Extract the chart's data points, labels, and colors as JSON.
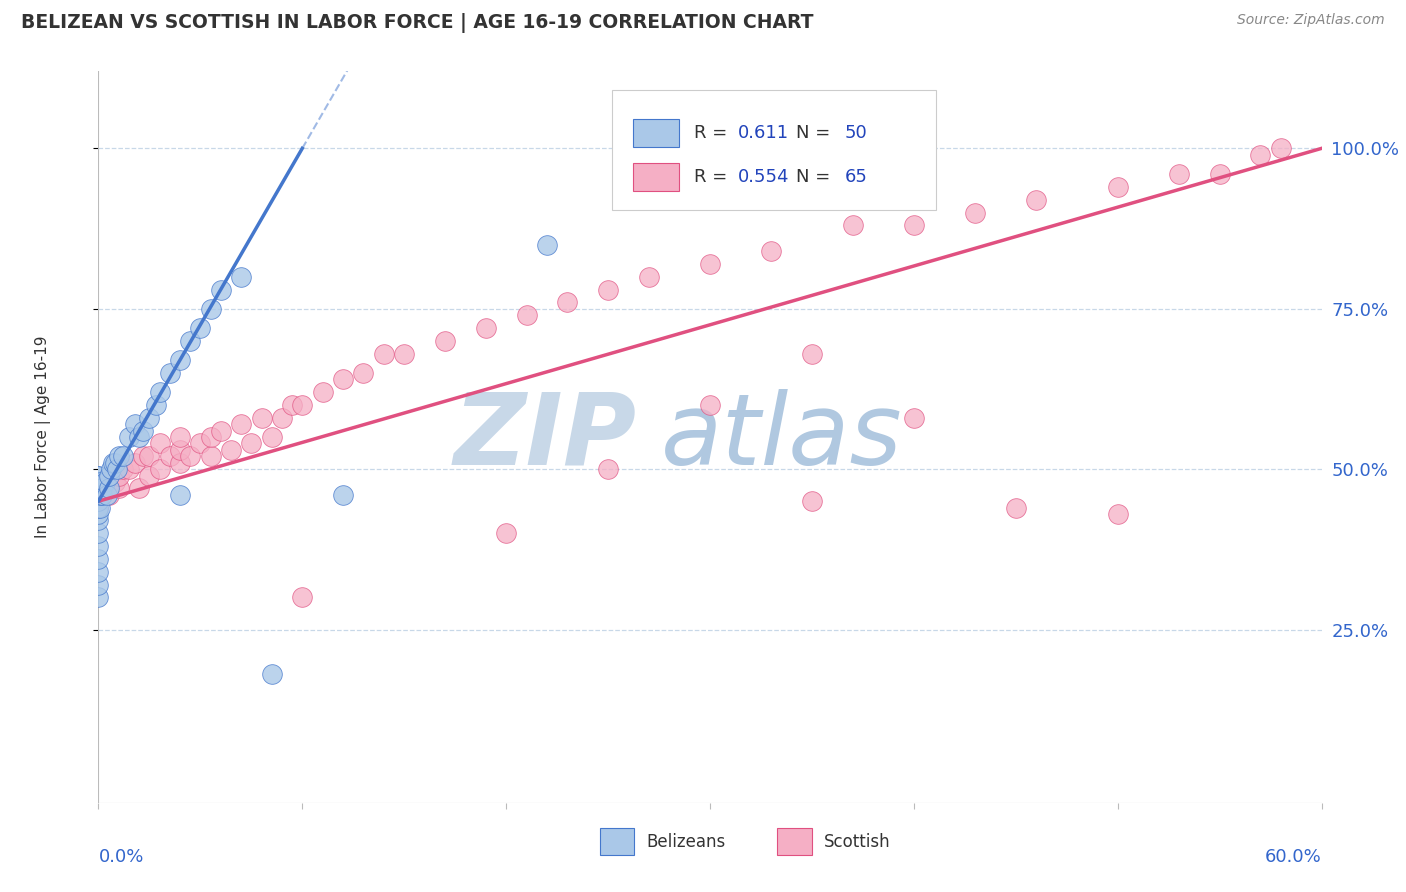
{
  "title": "BELIZEAN VS SCOTTISH IN LABOR FORCE | AGE 16-19 CORRELATION CHART",
  "source_text": "Source: ZipAtlas.com",
  "ylabel": "In Labor Force | Age 16-19",
  "right_yticks": [
    "25.0%",
    "50.0%",
    "75.0%",
    "100.0%"
  ],
  "right_ytick_vals": [
    0.25,
    0.5,
    0.75,
    1.0
  ],
  "xlim": [
    0.0,
    0.6
  ],
  "ylim": [
    -0.02,
    1.12
  ],
  "belizean_R": "0.611",
  "belizean_N": "50",
  "scottish_R": "0.554",
  "scottish_N": "65",
  "belizean_color": "#aac8e8",
  "scottish_color": "#f5afc5",
  "trendline_belizean_color": "#4477cc",
  "trendline_scottish_color": "#e05080",
  "legend_R_color": "#2244bb",
  "legend_N_color": "#2244bb",
  "watermark_color": "#cdd8e8",
  "background_color": "#ffffff",
  "belizean_x": [
    0.0,
    0.0,
    0.0,
    0.0,
    0.0,
    0.0,
    0.0,
    0.0,
    0.0,
    0.0,
    0.0,
    0.0,
    0.0,
    0.0,
    0.0,
    0.0,
    0.0,
    0.001,
    0.001,
    0.001,
    0.002,
    0.002,
    0.003,
    0.004,
    0.005,
    0.005,
    0.006,
    0.007,
    0.008,
    0.009,
    0.01,
    0.012,
    0.015,
    0.018,
    0.02,
    0.022,
    0.025,
    0.028,
    0.03,
    0.035,
    0.04,
    0.04,
    0.045,
    0.05,
    0.055,
    0.06,
    0.07,
    0.085,
    0.12,
    0.22
  ],
  "belizean_y": [
    0.3,
    0.32,
    0.34,
    0.36,
    0.38,
    0.4,
    0.42,
    0.43,
    0.44,
    0.45,
    0.46,
    0.47,
    0.47,
    0.48,
    0.48,
    0.49,
    0.49,
    0.44,
    0.46,
    0.48,
    0.46,
    0.47,
    0.48,
    0.46,
    0.47,
    0.49,
    0.5,
    0.51,
    0.51,
    0.5,
    0.52,
    0.52,
    0.55,
    0.57,
    0.55,
    0.56,
    0.58,
    0.6,
    0.62,
    0.65,
    0.67,
    0.46,
    0.7,
    0.72,
    0.75,
    0.78,
    0.8,
    0.18,
    0.46,
    0.85
  ],
  "scottish_x": [
    0.0,
    0.0,
    0.0,
    0.0,
    0.005,
    0.008,
    0.01,
    0.01,
    0.012,
    0.015,
    0.018,
    0.02,
    0.022,
    0.025,
    0.025,
    0.03,
    0.03,
    0.035,
    0.04,
    0.04,
    0.04,
    0.045,
    0.05,
    0.055,
    0.055,
    0.06,
    0.065,
    0.07,
    0.075,
    0.08,
    0.085,
    0.09,
    0.095,
    0.1,
    0.11,
    0.12,
    0.13,
    0.14,
    0.15,
    0.17,
    0.19,
    0.21,
    0.23,
    0.25,
    0.27,
    0.3,
    0.33,
    0.37,
    0.4,
    0.43,
    0.46,
    0.5,
    0.53,
    0.55,
    0.57,
    0.58,
    0.3,
    0.1,
    0.2,
    0.35,
    0.4,
    0.45,
    0.5,
    0.35,
    0.25
  ],
  "scottish_y": [
    0.44,
    0.45,
    0.46,
    0.48,
    0.46,
    0.48,
    0.47,
    0.49,
    0.5,
    0.5,
    0.51,
    0.47,
    0.52,
    0.49,
    0.52,
    0.5,
    0.54,
    0.52,
    0.51,
    0.53,
    0.55,
    0.52,
    0.54,
    0.52,
    0.55,
    0.56,
    0.53,
    0.57,
    0.54,
    0.58,
    0.55,
    0.58,
    0.6,
    0.6,
    0.62,
    0.64,
    0.65,
    0.68,
    0.68,
    0.7,
    0.72,
    0.74,
    0.76,
    0.78,
    0.8,
    0.82,
    0.84,
    0.88,
    0.88,
    0.9,
    0.92,
    0.94,
    0.96,
    0.96,
    0.99,
    1.0,
    0.6,
    0.3,
    0.4,
    0.45,
    0.58,
    0.44,
    0.43,
    0.68,
    0.5
  ],
  "scottish_trendline_x0": 0.0,
  "scottish_trendline_y0": 0.45,
  "scottish_trendline_x1": 0.6,
  "scottish_trendline_y1": 1.0,
  "belizean_trendline_x0": 0.0,
  "belizean_trendline_y0": 0.45,
  "belizean_trendline_x1": 0.1,
  "belizean_trendline_y1": 1.0
}
